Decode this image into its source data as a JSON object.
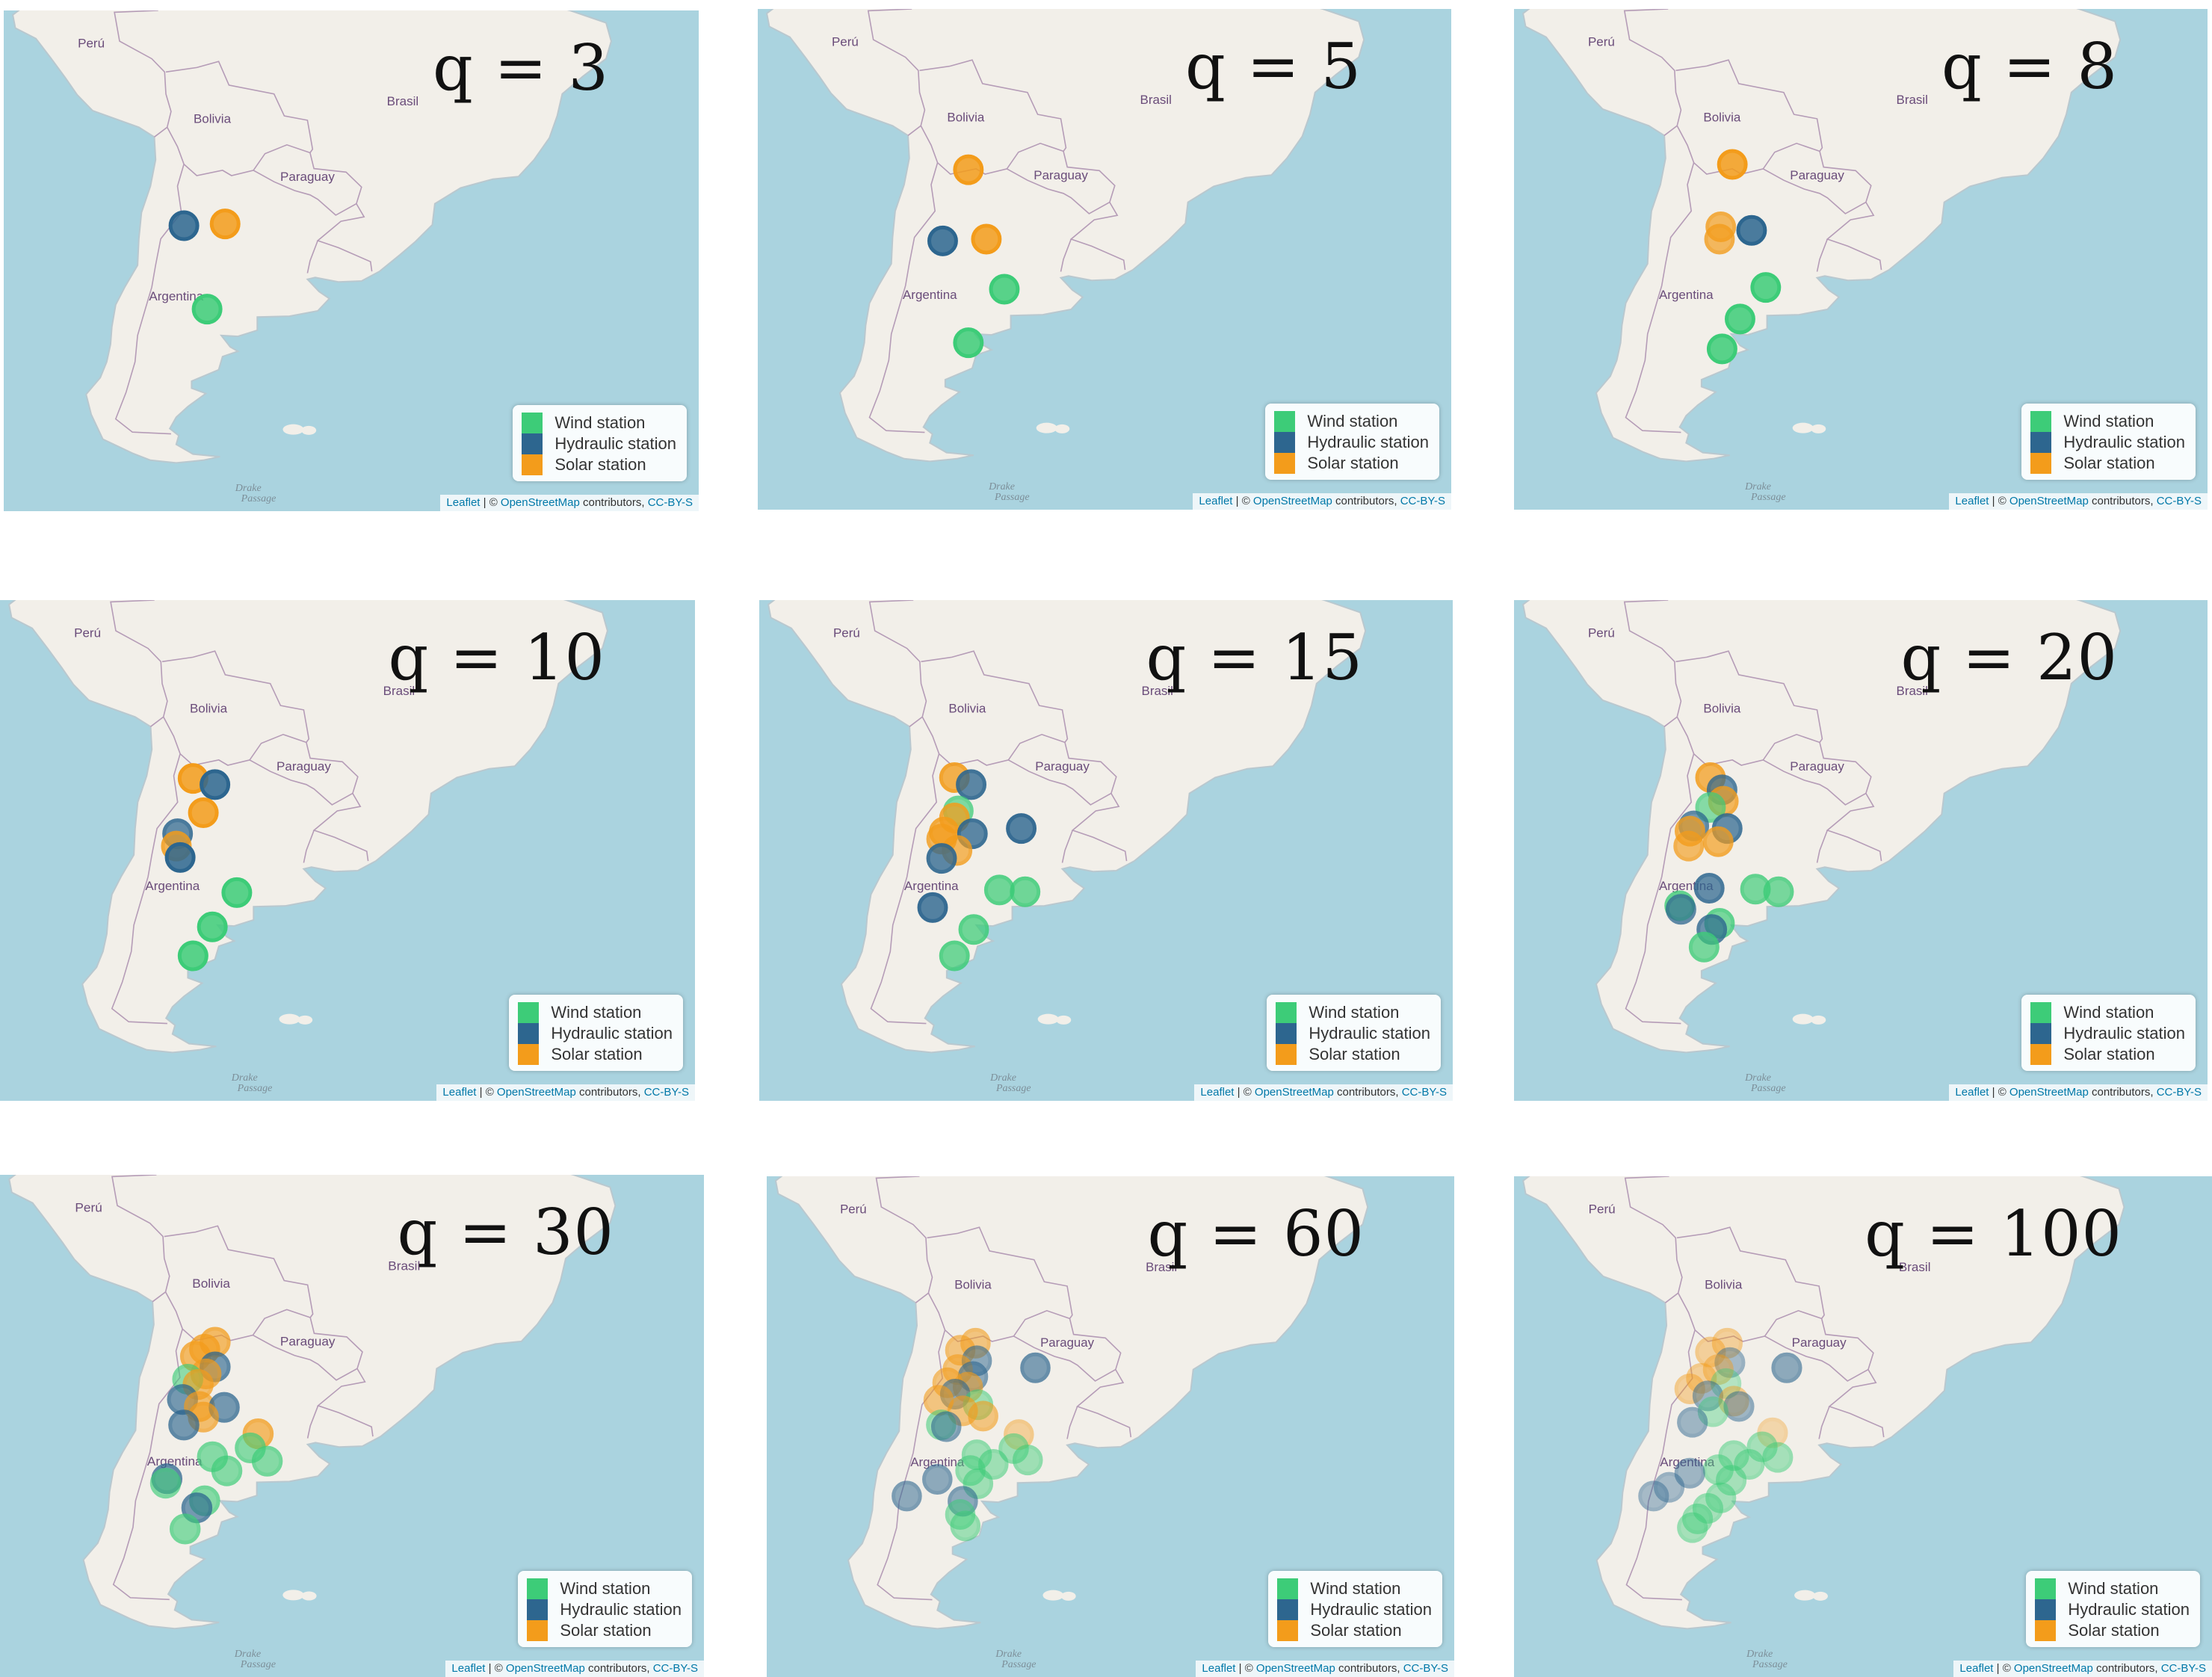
{
  "legend": {
    "items": [
      {
        "label": "Wind station",
        "color": "#3dcc78"
      },
      {
        "label": "Hydraulic station",
        "color": "#2d668f"
      },
      {
        "label": "Solar station",
        "color": "#f39c1b"
      }
    ]
  },
  "attribution": {
    "leaflet": "Leaflet",
    "middle": " | © ",
    "osm": "OpenStreetMap",
    "contributors": " contributors, ",
    "license": "CC-BY-S"
  },
  "map_labels": {
    "peru": "Perú",
    "bolivia": "Bolivia",
    "brasil": "Brasil",
    "paraguay": "Paraguay",
    "argentina": "Argentina",
    "drake1": "Drake",
    "drake2": "Passage"
  },
  "panels": [
    {
      "label": "q = 3",
      "stations": [
        {
          "type": "hydraulic",
          "lat": -28.5,
          "lon": -68.0,
          "alpha": 1
        },
        {
          "type": "solar",
          "lat": -28.3,
          "lon": -64.8,
          "alpha": 1
        },
        {
          "type": "wind",
          "lat": -38.0,
          "lon": -66.2,
          "alpha": 1
        }
      ]
    },
    {
      "label": "q = 5",
      "stations": [
        {
          "type": "solar",
          "lat": -22.3,
          "lon": -65.6,
          "alpha": 1
        },
        {
          "type": "hydraulic",
          "lat": -30.4,
          "lon": -67.6,
          "alpha": 1
        },
        {
          "type": "solar",
          "lat": -30.2,
          "lon": -64.2,
          "alpha": 1
        },
        {
          "type": "wind",
          "lat": -35.9,
          "lon": -62.8,
          "alpha": 1
        },
        {
          "type": "wind",
          "lat": -42.0,
          "lon": -65.6,
          "alpha": 1
        }
      ]
    },
    {
      "label": "q = 8",
      "stations": [
        {
          "type": "solar",
          "lat": -21.7,
          "lon": -65.0,
          "alpha": 1
        },
        {
          "type": "solar",
          "lat": -28.8,
          "lon": -65.9,
          "alpha": 0.8
        },
        {
          "type": "solar",
          "lat": -30.2,
          "lon": -66.0,
          "alpha": 0.8
        },
        {
          "type": "hydraulic",
          "lat": -29.2,
          "lon": -63.5,
          "alpha": 1
        },
        {
          "type": "wind",
          "lat": -35.7,
          "lon": -62.4,
          "alpha": 1
        },
        {
          "type": "wind",
          "lat": -39.3,
          "lon": -64.4,
          "alpha": 1
        },
        {
          "type": "wind",
          "lat": -42.7,
          "lon": -65.8,
          "alpha": 1
        }
      ]
    },
    {
      "label": "q = 10",
      "stations": [
        {
          "type": "solar",
          "lat": -24.3,
          "lon": -67.0,
          "alpha": 1
        },
        {
          "type": "hydraulic",
          "lat": -25.0,
          "lon": -65.3,
          "alpha": 1
        },
        {
          "type": "solar",
          "lat": -28.2,
          "lon": -66.2,
          "alpha": 1
        },
        {
          "type": "hydraulic",
          "lat": -30.6,
          "lon": -68.2,
          "alpha": 0.85
        },
        {
          "type": "solar",
          "lat": -32.0,
          "lon": -68.3,
          "alpha": 0.85
        },
        {
          "type": "hydraulic",
          "lat": -33.3,
          "lon": -68.0,
          "alpha": 1
        },
        {
          "type": "wind",
          "lat": -37.3,
          "lon": -63.6,
          "alpha": 1
        },
        {
          "type": "wind",
          "lat": -41.2,
          "lon": -65.5,
          "alpha": 1
        },
        {
          "type": "wind",
          "lat": -44.5,
          "lon": -67.0,
          "alpha": 1
        }
      ]
    },
    {
      "label": "q = 15",
      "stations": [
        {
          "type": "solar",
          "lat": -24.2,
          "lon": -66.8,
          "alpha": 0.9
        },
        {
          "type": "hydraulic",
          "lat": -25.0,
          "lon": -65.5,
          "alpha": 0.9
        },
        {
          "type": "wind",
          "lat": -28.0,
          "lon": -66.5,
          "alpha": 0.75
        },
        {
          "type": "solar",
          "lat": -28.8,
          "lon": -66.8,
          "alpha": 0.85
        },
        {
          "type": "solar",
          "lat": -30.4,
          "lon": -67.6,
          "alpha": 0.85
        },
        {
          "type": "hydraulic",
          "lat": -30.6,
          "lon": -65.4,
          "alpha": 0.9
        },
        {
          "type": "solar",
          "lat": -31.2,
          "lon": -67.8,
          "alpha": 0.8
        },
        {
          "type": "solar",
          "lat": -32.5,
          "lon": -66.6,
          "alpha": 0.8
        },
        {
          "type": "hydraulic",
          "lat": -33.4,
          "lon": -67.8,
          "alpha": 0.9
        },
        {
          "type": "hydraulic",
          "lat": -30.0,
          "lon": -61.6,
          "alpha": 0.95
        },
        {
          "type": "wind",
          "lat": -37.0,
          "lon": -63.3,
          "alpha": 0.85
        },
        {
          "type": "wind",
          "lat": -37.2,
          "lon": -61.3,
          "alpha": 0.85
        },
        {
          "type": "hydraulic",
          "lat": -39.0,
          "lon": -68.5,
          "alpha": 0.95
        },
        {
          "type": "wind",
          "lat": -41.5,
          "lon": -65.3,
          "alpha": 0.85
        },
        {
          "type": "wind",
          "lat": -44.5,
          "lon": -66.8,
          "alpha": 0.85
        }
      ]
    },
    {
      "label": "q = 20",
      "stations": [
        {
          "type": "solar",
          "lat": -24.2,
          "lon": -66.7,
          "alpha": 0.85
        },
        {
          "type": "hydraulic",
          "lat": -25.6,
          "lon": -65.8,
          "alpha": 0.8
        },
        {
          "type": "solar",
          "lat": -26.9,
          "lon": -65.7,
          "alpha": 0.8
        },
        {
          "type": "wind",
          "lat": -27.6,
          "lon": -66.7,
          "alpha": 0.7
        },
        {
          "type": "hydraulic",
          "lat": -29.7,
          "lon": -68.0,
          "alpha": 0.75
        },
        {
          "type": "solar",
          "lat": -30.3,
          "lon": -68.3,
          "alpha": 0.8
        },
        {
          "type": "hydraulic",
          "lat": -30.0,
          "lon": -65.4,
          "alpha": 0.85
        },
        {
          "type": "solar",
          "lat": -31.5,
          "lon": -66.1,
          "alpha": 0.8
        },
        {
          "type": "solar",
          "lat": -32.0,
          "lon": -68.4,
          "alpha": 0.75
        },
        {
          "type": "hydraulic",
          "lat": -36.8,
          "lon": -66.8,
          "alpha": 0.85
        },
        {
          "type": "wind",
          "lat": -36.9,
          "lon": -63.2,
          "alpha": 0.8
        },
        {
          "type": "wind",
          "lat": -37.2,
          "lon": -61.4,
          "alpha": 0.8
        },
        {
          "type": "wind",
          "lat": -38.8,
          "lon": -69.1,
          "alpha": 0.8
        },
        {
          "type": "hydraulic",
          "lat": -39.2,
          "lon": -69.0,
          "alpha": 0.75
        },
        {
          "type": "wind",
          "lat": -40.8,
          "lon": -66.0,
          "alpha": 0.8
        },
        {
          "type": "hydraulic",
          "lat": -41.5,
          "lon": -66.6,
          "alpha": 0.8
        },
        {
          "type": "wind",
          "lat": -43.5,
          "lon": -67.2,
          "alpha": 0.8
        }
      ]
    },
    {
      "label": "q = 30",
      "stations": [
        {
          "type": "solar",
          "lat": -23.0,
          "lon": -65.5,
          "alpha": 0.75
        },
        {
          "type": "solar",
          "lat": -23.8,
          "lon": -66.3,
          "alpha": 0.75
        },
        {
          "type": "solar",
          "lat": -24.6,
          "lon": -67.0,
          "alpha": 0.75
        },
        {
          "type": "hydraulic",
          "lat": -25.8,
          "lon": -65.5,
          "alpha": 0.75
        },
        {
          "type": "solar",
          "lat": -26.6,
          "lon": -66.2,
          "alpha": 0.7
        },
        {
          "type": "wind",
          "lat": -27.2,
          "lon": -67.6,
          "alpha": 0.65
        },
        {
          "type": "solar",
          "lat": -27.8,
          "lon": -66.8,
          "alpha": 0.7
        },
        {
          "type": "hydraulic",
          "lat": -29.5,
          "lon": -68.0,
          "alpha": 0.75
        },
        {
          "type": "solar",
          "lat": -30.3,
          "lon": -66.7,
          "alpha": 0.7
        },
        {
          "type": "hydraulic",
          "lat": -30.4,
          "lon": -64.8,
          "alpha": 0.75
        },
        {
          "type": "solar",
          "lat": -31.5,
          "lon": -66.4,
          "alpha": 0.7
        },
        {
          "type": "hydraulic",
          "lat": -32.4,
          "lon": -67.9,
          "alpha": 0.75
        },
        {
          "type": "solar",
          "lat": -33.4,
          "lon": -62.2,
          "alpha": 0.75
        },
        {
          "type": "wind",
          "lat": -35.0,
          "lon": -62.8,
          "alpha": 0.7
        },
        {
          "type": "wind",
          "lat": -36.0,
          "lon": -65.7,
          "alpha": 0.7
        },
        {
          "type": "wind",
          "lat": -36.5,
          "lon": -61.5,
          "alpha": 0.7
        },
        {
          "type": "wind",
          "lat": -37.6,
          "lon": -64.6,
          "alpha": 0.7
        },
        {
          "type": "hydraulic",
          "lat": -38.5,
          "lon": -69.2,
          "alpha": 0.75
        },
        {
          "type": "wind",
          "lat": -39.0,
          "lon": -69.3,
          "alpha": 0.65
        },
        {
          "type": "wind",
          "lat": -41.0,
          "lon": -66.3,
          "alpha": 0.7
        },
        {
          "type": "hydraulic",
          "lat": -41.8,
          "lon": -66.9,
          "alpha": 0.75
        },
        {
          "type": "wind",
          "lat": -44.2,
          "lon": -67.8,
          "alpha": 0.7
        }
      ]
    },
    {
      "label": "q = 60",
      "stations": [
        {
          "type": "solar",
          "lat": -23.0,
          "lon": -65.6,
          "alpha": 0.6
        },
        {
          "type": "solar",
          "lat": -23.8,
          "lon": -66.8,
          "alpha": 0.6
        },
        {
          "type": "hydraulic",
          "lat": -25.0,
          "lon": -65.5,
          "alpha": 0.6
        },
        {
          "type": "solar",
          "lat": -26.0,
          "lon": -67.0,
          "alpha": 0.6
        },
        {
          "type": "hydraulic",
          "lat": -26.8,
          "lon": -65.8,
          "alpha": 0.6
        },
        {
          "type": "solar",
          "lat": -27.5,
          "lon": -67.8,
          "alpha": 0.6
        },
        {
          "type": "solar",
          "lat": -28.0,
          "lon": -66.2,
          "alpha": 0.6
        },
        {
          "type": "hydraulic",
          "lat": -28.8,
          "lon": -67.2,
          "alpha": 0.6
        },
        {
          "type": "solar",
          "lat": -29.5,
          "lon": -68.5,
          "alpha": 0.6
        },
        {
          "type": "wind",
          "lat": -30.0,
          "lon": -65.4,
          "alpha": 0.55
        },
        {
          "type": "solar",
          "lat": -30.7,
          "lon": -66.6,
          "alpha": 0.6
        },
        {
          "type": "solar",
          "lat": -31.3,
          "lon": -65.0,
          "alpha": 0.6
        },
        {
          "type": "wind",
          "lat": -32.3,
          "lon": -68.3,
          "alpha": 0.55
        },
        {
          "type": "hydraulic",
          "lat": -32.5,
          "lon": -67.9,
          "alpha": 0.6
        },
        {
          "type": "hydraulic",
          "lat": -25.8,
          "lon": -60.9,
          "alpha": 0.7
        },
        {
          "type": "solar",
          "lat": -33.4,
          "lon": -62.2,
          "alpha": 0.45
        },
        {
          "type": "wind",
          "lat": -35.0,
          "lon": -62.6,
          "alpha": 0.55
        },
        {
          "type": "wind",
          "lat": -35.7,
          "lon": -65.5,
          "alpha": 0.55
        },
        {
          "type": "wind",
          "lat": -36.3,
          "lon": -61.5,
          "alpha": 0.55
        },
        {
          "type": "wind",
          "lat": -36.8,
          "lon": -64.2,
          "alpha": 0.55
        },
        {
          "type": "wind",
          "lat": -37.5,
          "lon": -66.0,
          "alpha": 0.55
        },
        {
          "type": "hydraulic",
          "lat": -38.5,
          "lon": -68.6,
          "alpha": 0.6
        },
        {
          "type": "wind",
          "lat": -39.0,
          "lon": -65.4,
          "alpha": 0.55
        },
        {
          "type": "hydraulic",
          "lat": -40.4,
          "lon": -71.0,
          "alpha": 0.6
        },
        {
          "type": "hydraulic",
          "lat": -41.0,
          "lon": -66.6,
          "alpha": 0.6
        },
        {
          "type": "wind",
          "lat": -42.5,
          "lon": -66.8,
          "alpha": 0.55
        },
        {
          "type": "wind",
          "lat": -43.8,
          "lon": -66.4,
          "alpha": 0.55
        }
      ]
    },
    {
      "label": "q = 100",
      "stations": [
        {
          "type": "solar",
          "lat": -23.0,
          "lon": -65.5,
          "alpha": 0.45
        },
        {
          "type": "solar",
          "lat": -24.0,
          "lon": -66.8,
          "alpha": 0.45
        },
        {
          "type": "hydraulic",
          "lat": -25.2,
          "lon": -65.3,
          "alpha": 0.45
        },
        {
          "type": "solar",
          "lat": -26.0,
          "lon": -66.2,
          "alpha": 0.45
        },
        {
          "type": "solar",
          "lat": -27.0,
          "lon": -67.5,
          "alpha": 0.45
        },
        {
          "type": "wind",
          "lat": -27.6,
          "lon": -65.6,
          "alpha": 0.4
        },
        {
          "type": "solar",
          "lat": -28.2,
          "lon": -68.4,
          "alpha": 0.45
        },
        {
          "type": "hydraulic",
          "lat": -29.0,
          "lon": -67.0,
          "alpha": 0.5
        },
        {
          "type": "solar",
          "lat": -29.6,
          "lon": -65.0,
          "alpha": 0.45
        },
        {
          "type": "hydraulic",
          "lat": -30.2,
          "lon": -64.6,
          "alpha": 0.5
        },
        {
          "type": "wind",
          "lat": -30.8,
          "lon": -66.6,
          "alpha": 0.45
        },
        {
          "type": "hydraulic",
          "lat": -32.0,
          "lon": -68.2,
          "alpha": 0.5
        },
        {
          "type": "solar",
          "lat": -33.2,
          "lon": -62.0,
          "alpha": 0.35
        },
        {
          "type": "hydraulic",
          "lat": -25.8,
          "lon": -60.9,
          "alpha": 0.6
        },
        {
          "type": "wind",
          "lat": -34.8,
          "lon": -62.8,
          "alpha": 0.5
        },
        {
          "type": "wind",
          "lat": -35.8,
          "lon": -65.0,
          "alpha": 0.5
        },
        {
          "type": "wind",
          "lat": -36.0,
          "lon": -61.6,
          "alpha": 0.5
        },
        {
          "type": "wind",
          "lat": -36.8,
          "lon": -63.8,
          "alpha": 0.5
        },
        {
          "type": "wind",
          "lat": -37.4,
          "lon": -66.2,
          "alpha": 0.5
        },
        {
          "type": "hydraulic",
          "lat": -37.8,
          "lon": -68.4,
          "alpha": 0.5
        },
        {
          "type": "wind",
          "lat": -38.6,
          "lon": -65.2,
          "alpha": 0.5
        },
        {
          "type": "hydraulic",
          "lat": -39.4,
          "lon": -70.0,
          "alpha": 0.45
        },
        {
          "type": "hydraulic",
          "lat": -40.4,
          "lon": -71.2,
          "alpha": 0.45
        },
        {
          "type": "wind",
          "lat": -40.6,
          "lon": -66.0,
          "alpha": 0.5
        },
        {
          "type": "wind",
          "lat": -41.8,
          "lon": -67.0,
          "alpha": 0.5
        },
        {
          "type": "wind",
          "lat": -43.0,
          "lon": -67.8,
          "alpha": 0.5
        },
        {
          "type": "wind",
          "lat": -44.0,
          "lon": -68.2,
          "alpha": 0.5
        }
      ]
    }
  ]
}
